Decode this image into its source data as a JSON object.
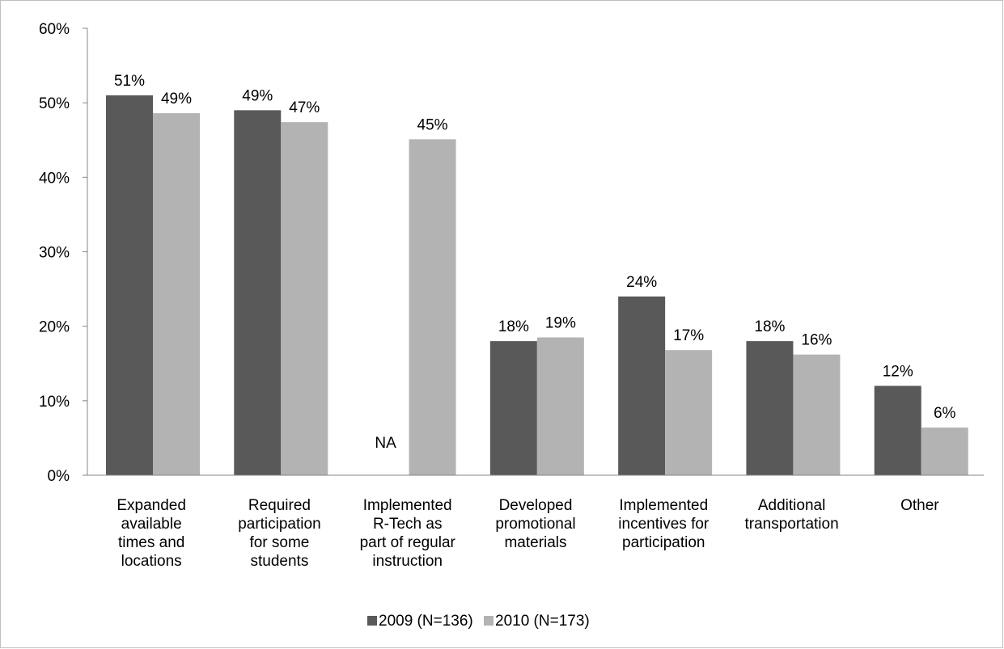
{
  "chart_data": {
    "type": "bar",
    "categories": [
      [
        "Expanded",
        "available",
        "times and",
        "locations"
      ],
      [
        "Required",
        "participation",
        "for some",
        "students"
      ],
      [
        "Implemented",
        "R-Tech as",
        "part of regular",
        "instruction"
      ],
      [
        "Developed",
        "promotional",
        "materials"
      ],
      [
        "Implemented",
        "incentives for",
        "participation"
      ],
      [
        "Additional",
        "transportation"
      ],
      [
        "Other"
      ]
    ],
    "series": [
      {
        "name": "2009 (N=136)",
        "color": "#595959",
        "values": [
          51,
          49,
          null,
          18,
          24,
          18,
          12
        ],
        "labels": [
          "51%",
          "49%",
          "NA",
          "18%",
          "24%",
          "18%",
          "12%"
        ]
      },
      {
        "name": "2010 (N=173)",
        "color": "#b3b3b3",
        "values": [
          48.6,
          47.4,
          45.1,
          18.5,
          16.8,
          16.2,
          6.4
        ],
        "labels": [
          "49%",
          "47%",
          "45%",
          "19%",
          "17%",
          "16%",
          "6%"
        ]
      }
    ],
    "yticks": [
      "0%",
      "10%",
      "20%",
      "30%",
      "40%",
      "50%",
      "60%"
    ],
    "ylim": [
      0,
      60
    ],
    "legend_position": "bottom",
    "grid": false
  }
}
